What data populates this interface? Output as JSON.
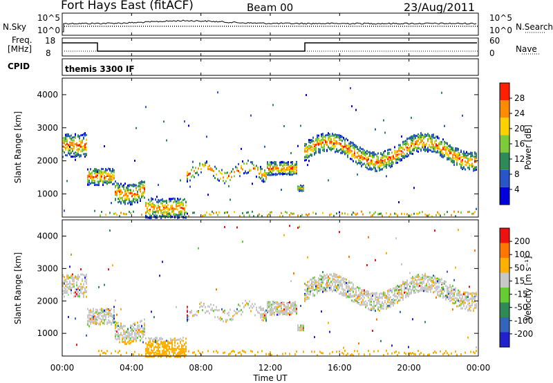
{
  "header": {
    "station": "Fort Hays East (fitACF)",
    "beam": "Beam 00",
    "date": "23/Aug/2011"
  },
  "strips": {
    "nsky_label": "N.Sky",
    "nsearch_label": "N.Search",
    "y_top": "10^5",
    "y_bot": "10^0",
    "y_top_r": "10^5",
    "y_bot_r": "10^0",
    "freq_label": "Freq.",
    "freq_unit": "[MHz]",
    "freq_top": "18",
    "freq_bot": "8",
    "nave_label": "Nave",
    "nave_top": "60",
    "nave_bot": "0",
    "cpid_label": "CPID",
    "cpid_value": "themis 3300 IF"
  },
  "chart_data": [
    {
      "type": "heatmap",
      "name": "power-panel",
      "ylabel": "Slant Range [km]",
      "y_ticks": [
        "1000",
        "2000",
        "3000",
        "4000"
      ],
      "colorbar_label": "Power [dB]",
      "colorbar_ticks": [
        "4",
        "8",
        "12",
        "16",
        "20",
        "24",
        "28"
      ],
      "colors": [
        "#0000dd",
        "#2a55c8",
        "#2e8b57",
        "#7ecb3a",
        "#ffd000",
        "#ff8c00",
        "#ff2000"
      ]
    },
    {
      "type": "heatmap",
      "name": "velocity-panel",
      "ylabel": "Slant Range [km]",
      "y_ticks": [
        "1000",
        "2000",
        "3000",
        "4000"
      ],
      "colorbar_label": "Velocity [m s⁻¹]",
      "colorbar_ticks": [
        "200",
        "100",
        "50",
        "15",
        "-15",
        "-50",
        "-100",
        "-200"
      ],
      "colors": [
        "#2222cc",
        "#3366bb",
        "#2e8b57",
        "#66cc33",
        "#c8c8c8",
        "#ffb000",
        "#ff7700",
        "#ee1111"
      ]
    }
  ],
  "x_ticks": [
    "00:00",
    "04:00",
    "08:00",
    "12:00",
    "16:00",
    "20:00",
    "00:00"
  ],
  "xlabel": "Time UT"
}
